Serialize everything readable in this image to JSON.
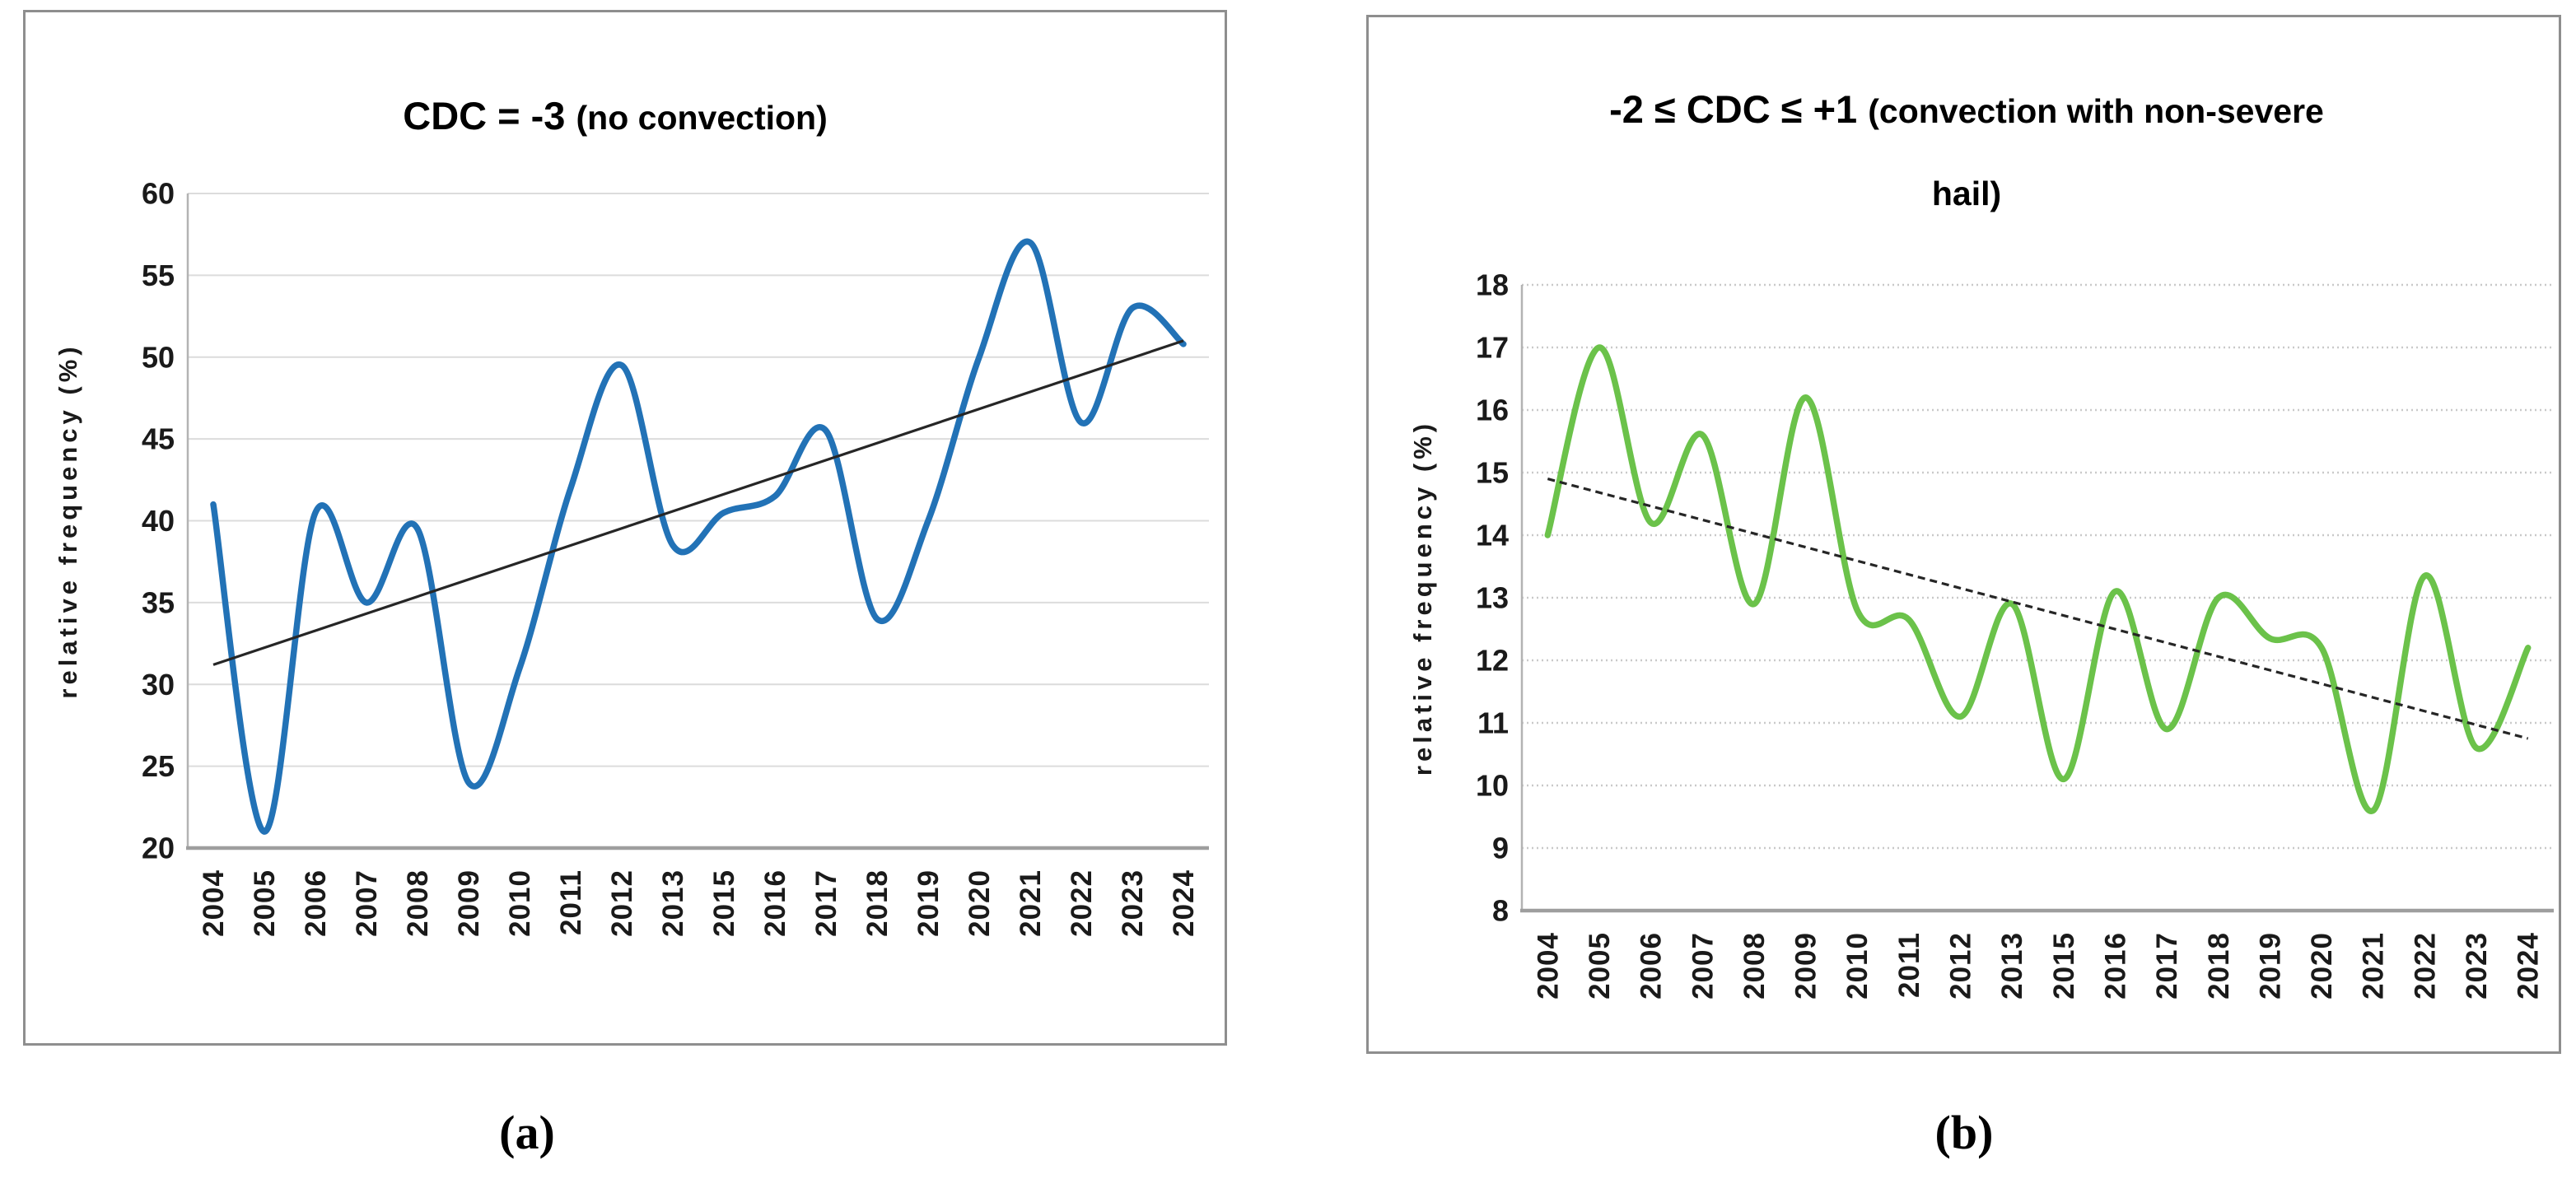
{
  "captions": {
    "a": "(a)",
    "b": "(b)"
  },
  "chart_data": [
    {
      "type": "line",
      "panel": "a",
      "title": "CDC = -3 (no convection)",
      "title_parts": {
        "main": "CDC = -3 ",
        "sub": "(no convection)",
        "line2": ""
      },
      "xlabel": "",
      "ylabel": "relative frequency (%)",
      "ylim": [
        20,
        60
      ],
      "ystep": 5,
      "ytick_labels": [
        "20",
        "25",
        "30",
        "35",
        "40",
        "45",
        "50",
        "55",
        "60"
      ],
      "categories": [
        "2004",
        "2005",
        "2006",
        "2007",
        "2008",
        "2009",
        "2010",
        "2011",
        "2012",
        "2013",
        "2015",
        "2016",
        "2017",
        "2018",
        "2019",
        "2020",
        "2021",
        "2022",
        "2023",
        "2024"
      ],
      "values": [
        41,
        21,
        40.5,
        35,
        39.5,
        24,
        31,
        42,
        49.5,
        38.5,
        40.5,
        41.5,
        45.5,
        34,
        40,
        50,
        57,
        46,
        53,
        50.8
      ],
      "trendline": {
        "start": 31.2,
        "end": 51.0,
        "style": "solid"
      },
      "grid_style": "solid",
      "legend": "none",
      "x_tick_rotation_deg": 90,
      "colors": {
        "line": "#2272B6",
        "trend": "#262626",
        "grid": "#DCDCDC",
        "axis": "#9E9E9E",
        "text": "#1a1a1a"
      }
    },
    {
      "type": "line",
      "panel": "b",
      "title": "-2 ≤ CDC ≤ +1 (convection with non-severe hail)",
      "title_parts": {
        "main": "-2 ≤ CDC ≤ +1 ",
        "sub": "(convection with non-severe",
        "line2": "hail)"
      },
      "xlabel": "",
      "ylabel": "relative frequency (%)",
      "ylim": [
        8,
        18
      ],
      "ystep": 1,
      "ytick_labels": [
        "8",
        "9",
        "10",
        "11",
        "12",
        "13",
        "14",
        "15",
        "16",
        "17",
        "18"
      ],
      "categories": [
        "2004",
        "2005",
        "2006",
        "2007",
        "2008",
        "2009",
        "2010",
        "2011",
        "2012",
        "2013",
        "2015",
        "2016",
        "2017",
        "2018",
        "2019",
        "2020",
        "2021",
        "2022",
        "2023",
        "2024"
      ],
      "values": [
        14,
        17,
        14.2,
        15.6,
        12.9,
        16.2,
        12.8,
        12.65,
        11.1,
        12.9,
        10.1,
        13.1,
        10.9,
        13.0,
        12.35,
        12.2,
        9.6,
        13.35,
        10.6,
        12.2
      ],
      "trendline": {
        "start": 14.9,
        "end": 10.75,
        "style": "dashed"
      },
      "grid_style": "dotted",
      "legend": "none",
      "x_tick_rotation_deg": 90,
      "colors": {
        "line": "#6BC24A",
        "trend": "#262626",
        "grid": "#C9C9C9",
        "axis": "#9E9E9E",
        "text": "#1a1a1a"
      }
    }
  ]
}
